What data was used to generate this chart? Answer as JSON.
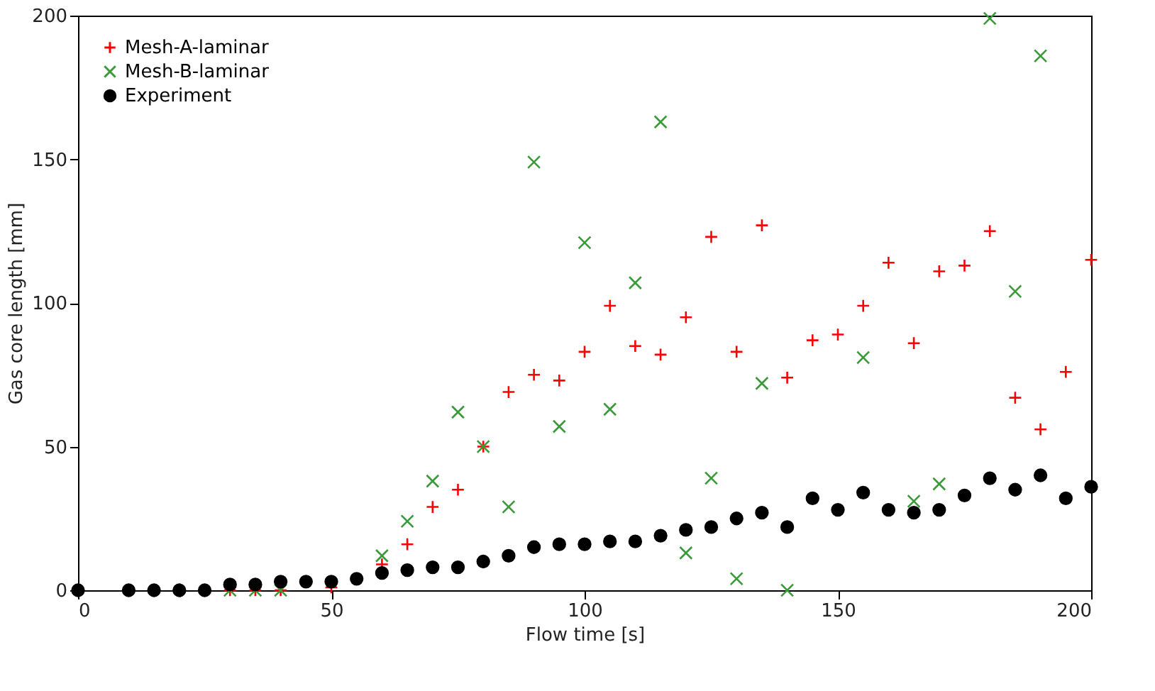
{
  "chart_data": {
    "type": "scatter",
    "xlabel": "Flow time [s]",
    "ylabel": "Gas core length [mm]",
    "xlim": [
      0,
      200
    ],
    "ylim": [
      0,
      200
    ],
    "xticks": [
      0,
      50,
      100,
      150,
      200
    ],
    "yticks": [
      0,
      50,
      100,
      150,
      200
    ],
    "grid": false,
    "legend": "top left",
    "series": [
      {
        "name": "Mesh-A-laminar",
        "color": "#ff0000",
        "marker": "cross",
        "x": [
          30,
          35,
          40,
          45,
          50,
          55,
          60,
          65,
          70,
          75,
          80,
          85,
          90,
          95,
          100,
          105,
          110,
          115,
          120,
          125,
          130,
          135,
          140,
          145,
          150,
          155,
          160,
          165,
          170,
          175,
          180,
          185,
          190,
          195,
          200
        ],
        "values": [
          0,
          0,
          0,
          null,
          1,
          null,
          9,
          16,
          29,
          35,
          50,
          69,
          75,
          73,
          83,
          99,
          85,
          82,
          95,
          123,
          83,
          127,
          74,
          87,
          89,
          99,
          114,
          86,
          111,
          113,
          125,
          67,
          56,
          76,
          115
        ]
      },
      {
        "name": "Mesh-B-laminar",
        "color": "#3a9a3a",
        "marker": "x",
        "x": [
          30,
          35,
          40,
          55,
          60,
          65,
          70,
          75,
          80,
          85,
          90,
          95,
          100,
          105,
          110,
          115,
          120,
          125,
          130,
          135,
          140,
          155,
          165,
          170,
          180,
          185,
          190
        ],
        "values": [
          0,
          0,
          0,
          null,
          12,
          24,
          38,
          62,
          50,
          29,
          149,
          57,
          121,
          63,
          107,
          163,
          13,
          39,
          4,
          72,
          0,
          81,
          31,
          37,
          199,
          104,
          186
        ]
      },
      {
        "name": "Experiment",
        "color": "#000000",
        "marker": "circle",
        "x": [
          0,
          10,
          15,
          20,
          25,
          30,
          35,
          40,
          45,
          50,
          55,
          60,
          65,
          70,
          75,
          80,
          85,
          90,
          95,
          100,
          105,
          110,
          115,
          120,
          125,
          130,
          135,
          140,
          145,
          150,
          155,
          160,
          165,
          170,
          175,
          180,
          185,
          190,
          195,
          200
        ],
        "values": [
          0,
          0,
          0,
          0,
          0,
          2,
          2,
          3,
          3,
          3,
          4,
          6,
          7,
          8,
          8,
          10,
          12,
          15,
          16,
          16,
          17,
          17,
          19,
          21,
          22,
          25,
          27,
          22,
          32,
          28,
          34,
          28,
          27,
          28,
          33,
          39,
          35,
          40,
          32,
          36
        ]
      }
    ]
  }
}
